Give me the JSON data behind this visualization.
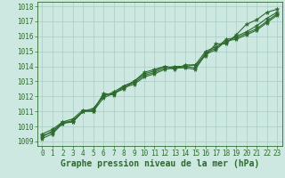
{
  "xlabel": "Graphe pression niveau de la mer (hPa)",
  "xlim": [
    -0.5,
    23.5
  ],
  "ylim": [
    1008.7,
    1018.3
  ],
  "yticks": [
    1009,
    1010,
    1011,
    1012,
    1013,
    1014,
    1015,
    1016,
    1017,
    1018
  ],
  "xticks": [
    0,
    1,
    2,
    3,
    4,
    5,
    6,
    7,
    8,
    9,
    10,
    11,
    12,
    13,
    14,
    15,
    16,
    17,
    18,
    19,
    20,
    21,
    22,
    23
  ],
  "background_color": "#cce8e0",
  "grid_color": "#a8ccc4",
  "line_color": "#2d6a2d",
  "lines": [
    [
      1009.4,
      1009.6,
      1010.3,
      1010.3,
      1011.0,
      1011.1,
      1012.1,
      1012.2,
      1012.5,
      1013.0,
      1013.5,
      1013.7,
      1014.0,
      1013.9,
      1014.0,
      1014.1,
      1014.7,
      1015.5,
      1015.5,
      1016.1,
      1016.8,
      1017.1,
      1017.6,
      1017.8
    ],
    [
      1009.3,
      1009.7,
      1010.2,
      1010.4,
      1011.0,
      1011.2,
      1012.0,
      1012.3,
      1012.7,
      1012.9,
      1013.4,
      1013.6,
      1013.9,
      1014.0,
      1014.0,
      1013.9,
      1014.9,
      1015.2,
      1015.8,
      1015.9,
      1016.2,
      1016.5,
      1017.0,
      1017.5
    ],
    [
      1009.5,
      1009.8,
      1010.3,
      1010.5,
      1011.1,
      1011.0,
      1012.2,
      1012.1,
      1012.7,
      1013.0,
      1013.6,
      1013.8,
      1014.0,
      1013.8,
      1014.1,
      1014.1,
      1015.0,
      1015.3,
      1015.6,
      1016.0,
      1016.3,
      1016.7,
      1017.2,
      1017.6
    ],
    [
      1009.2,
      1009.5,
      1010.2,
      1010.3,
      1011.0,
      1011.0,
      1011.9,
      1012.2,
      1012.6,
      1012.8,
      1013.3,
      1013.5,
      1013.8,
      1013.9,
      1013.9,
      1013.8,
      1014.8,
      1015.1,
      1015.7,
      1015.8,
      1016.1,
      1016.4,
      1016.9,
      1017.4
    ]
  ],
  "marker": "*",
  "markersize": 3.5,
  "linewidth": 0.8,
  "fontsize_label": 7,
  "fontsize_tick": 5.5,
  "spine_color": "#2d6a2d"
}
